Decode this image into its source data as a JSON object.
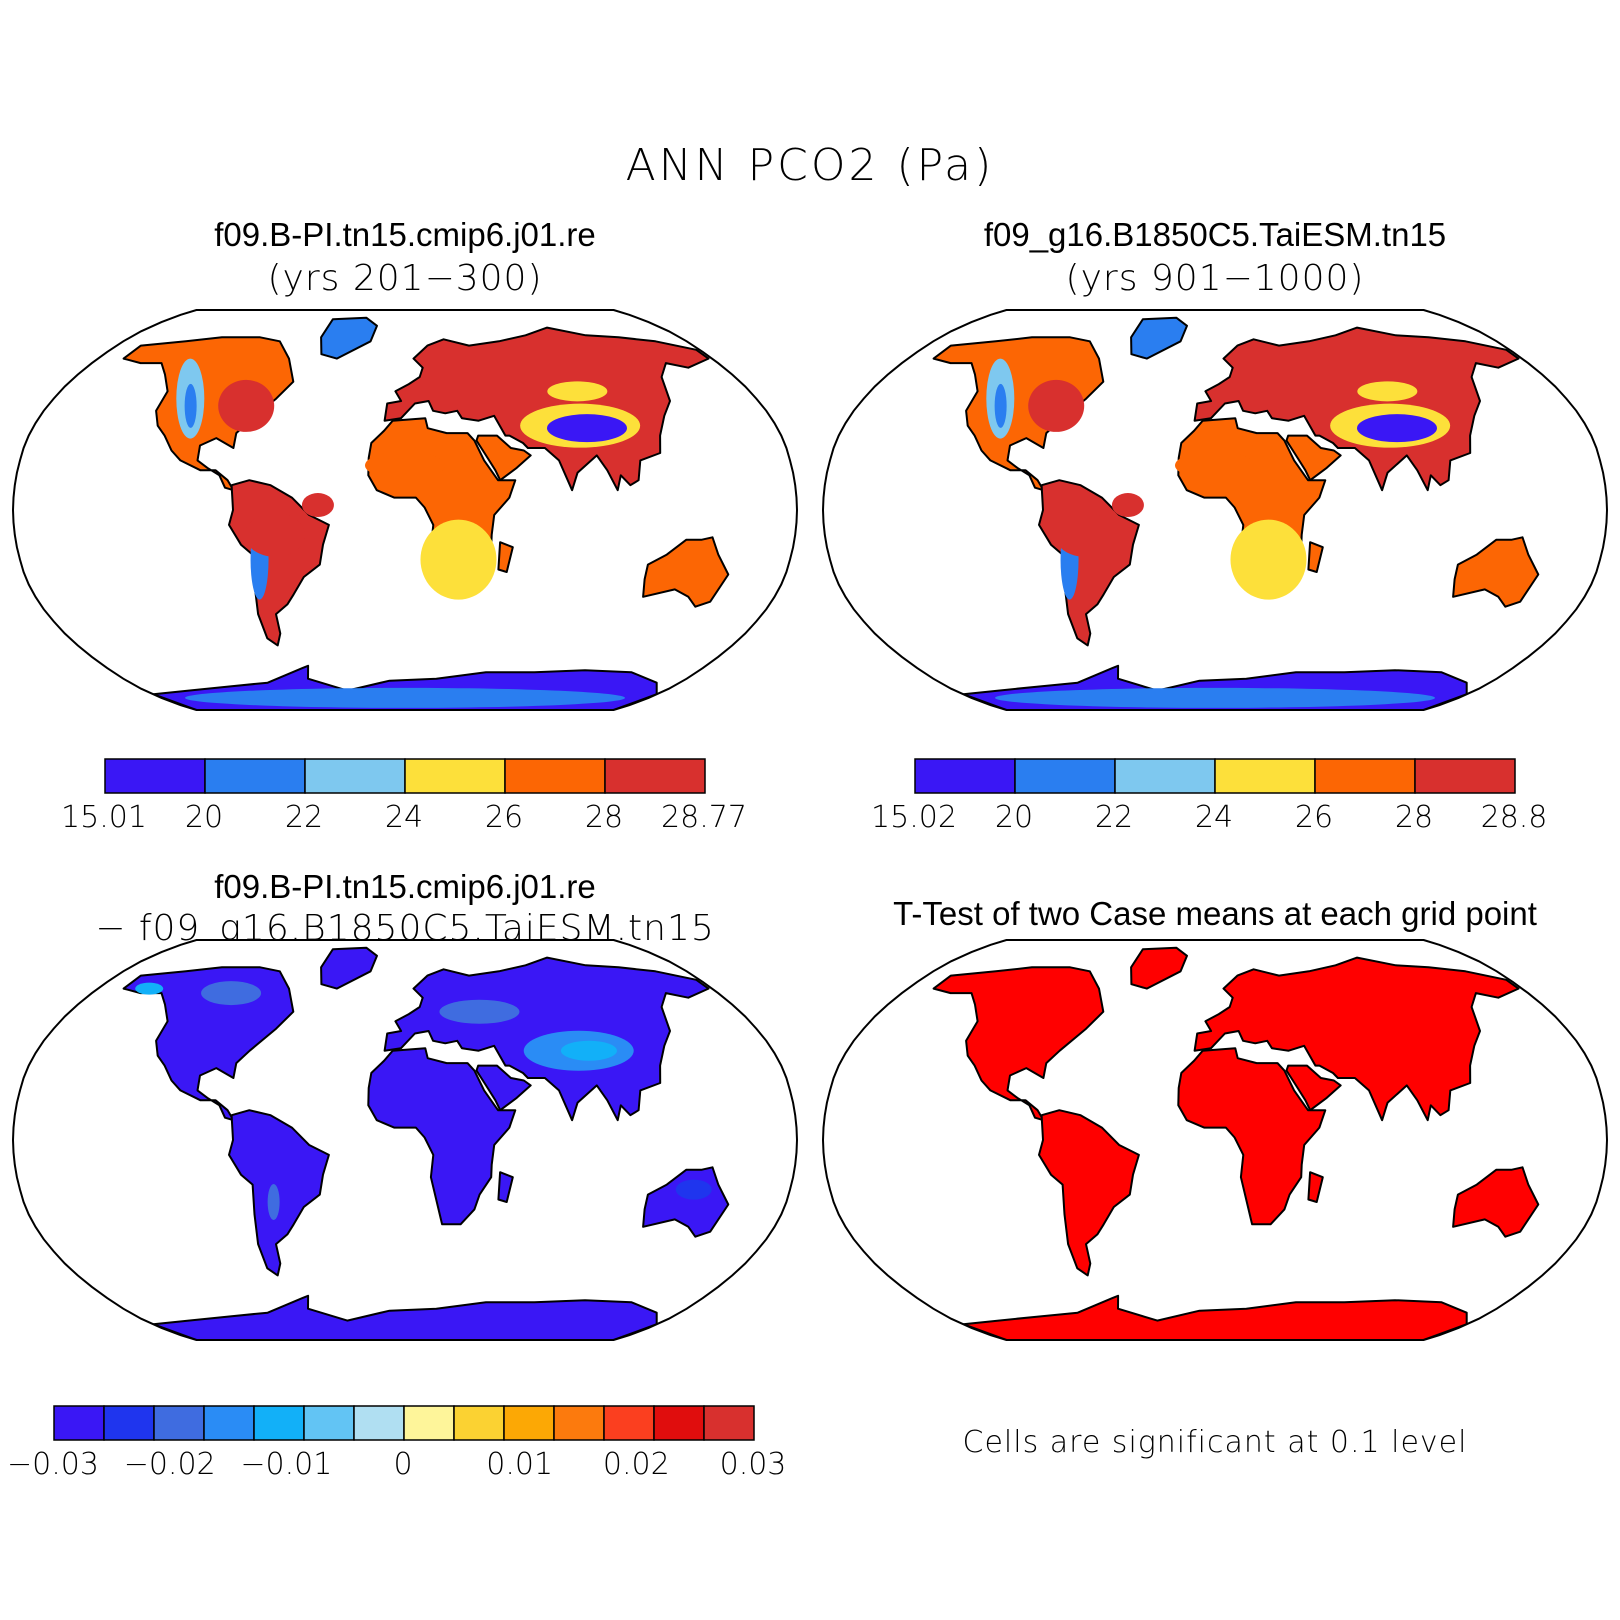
{
  "title": "ANN PCO2 (Pa)",
  "panels": [
    {
      "id": "case1",
      "title": "f09.B-PI.tn15.cmip6.j01.re",
      "subtitle": "(yrs 201−300)",
      "colorbar": {
        "labels": [
          "15.01",
          "20",
          "22",
          "24",
          "26",
          "28",
          "28.77"
        ],
        "colors": [
          "#3a17f5",
          "#2a7ef0",
          "#7ec8ef",
          "#fde03a",
          "#fc6604",
          "#d8302e"
        ]
      }
    },
    {
      "id": "case2",
      "title": "f09_g16.B1850C5.TaiESM.tn15",
      "subtitle": "(yrs 901−1000)",
      "colorbar": {
        "labels": [
          "15.02",
          "20",
          "22",
          "24",
          "26",
          "28",
          "28.8"
        ],
        "colors": [
          "#3a17f5",
          "#2a7ef0",
          "#7ec8ef",
          "#fde03a",
          "#fc6604",
          "#d8302e"
        ]
      }
    },
    {
      "id": "diff",
      "title": "f09.B-PI.tn15.cmip6.j01.re",
      "subtitle": "− f09_g16.B1850C5.TaiESM.tn15",
      "colorbar": {
        "labels": [
          "−0.03",
          "−0.02",
          "−0.01",
          "0",
          "0.01",
          "0.02",
          "0.03"
        ],
        "colors": [
          "#3a17f5",
          "#1f35ee",
          "#3f6ce0",
          "#2a8cf5",
          "#12b0f8",
          "#62c4f4",
          "#b0dff2",
          "#fef59a",
          "#fbd232",
          "#fca805",
          "#fc7a0d",
          "#fb3f1f",
          "#e00d0d",
          "#d8302e"
        ]
      }
    },
    {
      "id": "ttest",
      "title": "T-Test of two Case means at each grid point",
      "note": "Cells are significant at 0.1 level",
      "fill": "#ff0000"
    }
  ]
}
